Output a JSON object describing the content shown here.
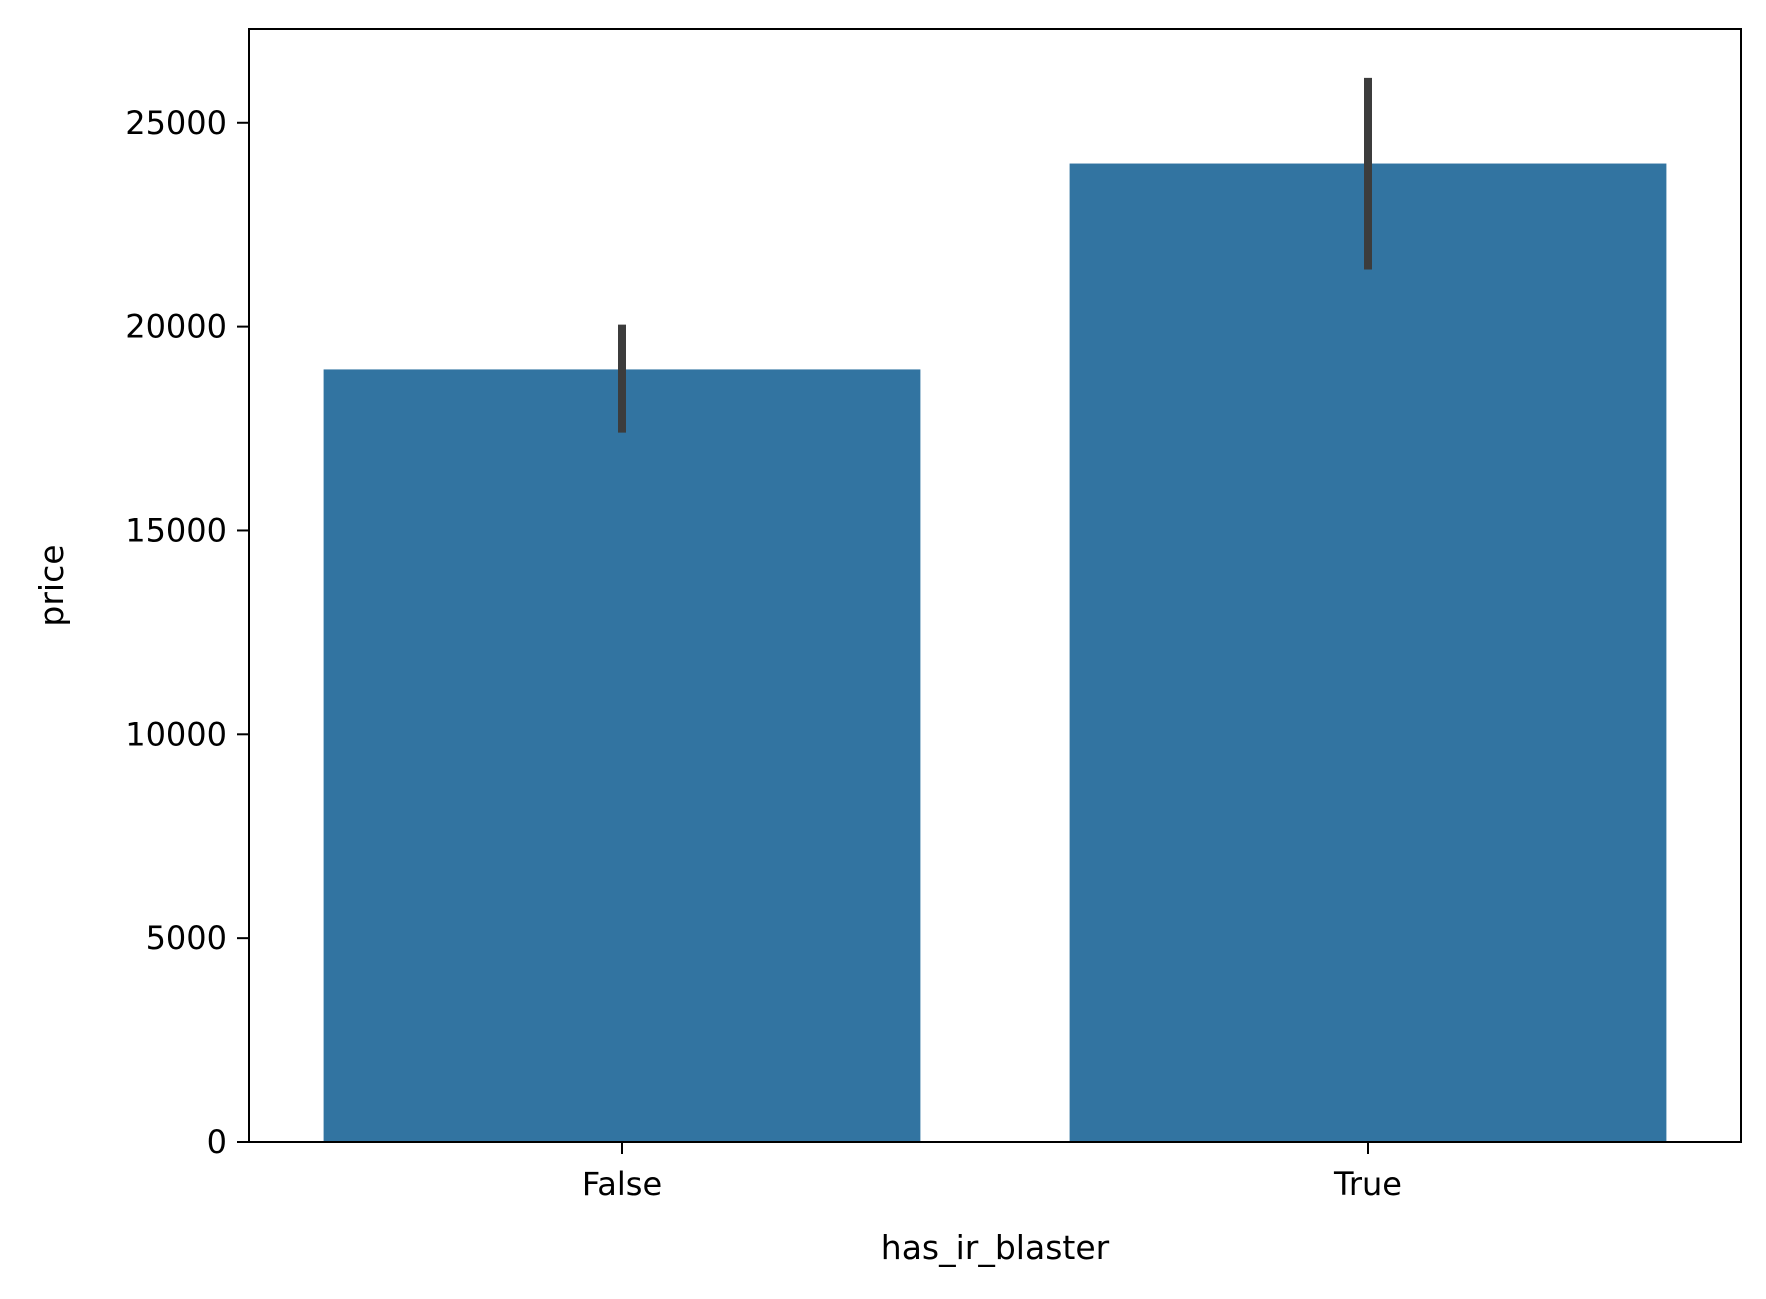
{
  "chart_data": {
    "type": "bar",
    "title": "",
    "xlabel": "has_ir_blaster",
    "ylabel": "price",
    "categories": [
      "False",
      "True"
    ],
    "values": [
      18950,
      24000
    ],
    "error_bars": [
      {
        "low": 17400,
        "high": 20050
      },
      {
        "low": 21400,
        "high": 26100
      }
    ],
    "ylim": [
      0,
      27300
    ],
    "yticks": [
      0,
      5000,
      10000,
      15000,
      20000,
      25000
    ],
    "ytick_labels": [
      "0",
      "5000",
      "10000",
      "15000",
      "20000",
      "25000"
    ],
    "grid": false,
    "colors": {
      "bar": "#3274a1",
      "error_bar": "#3c3c3c",
      "axis": "#000000"
    }
  }
}
